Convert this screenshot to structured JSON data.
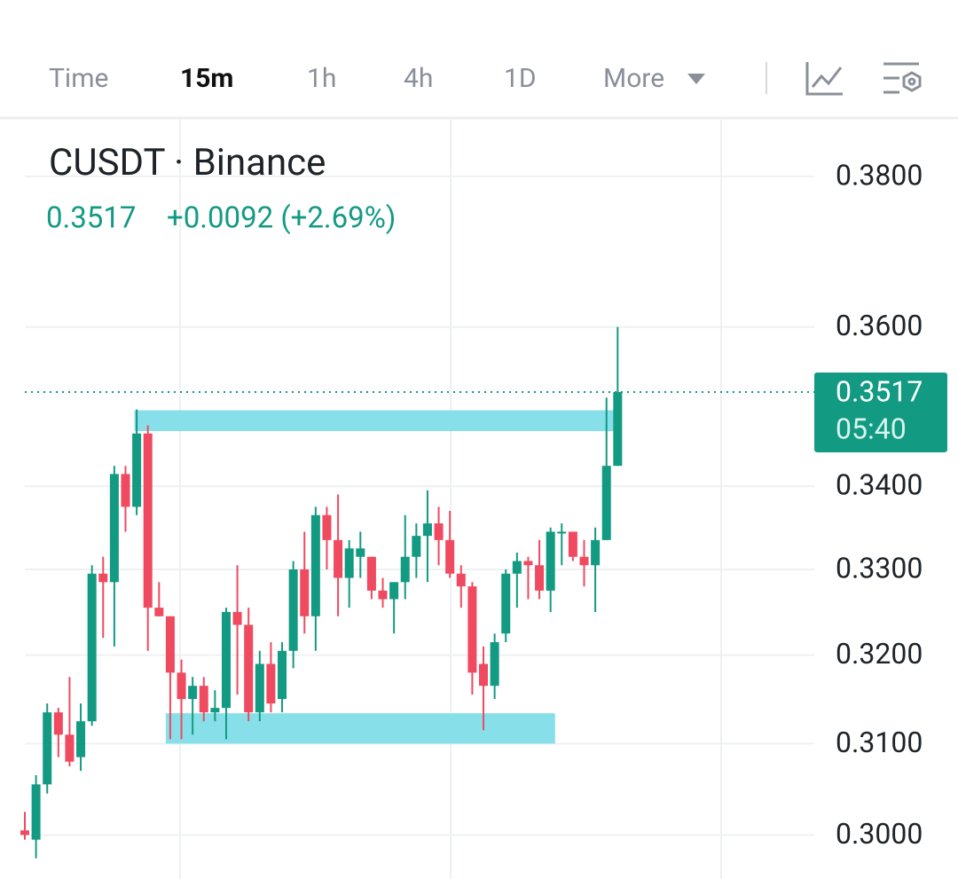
{
  "toolbar": {
    "tabs": [
      "Time",
      "15m",
      "1h",
      "4h",
      "1D",
      "More"
    ],
    "active": "15m"
  },
  "header": {
    "title": "CUSDT · Binance",
    "price": "0.3517",
    "change": "+0.0092 (+2.69%)"
  },
  "chart_data": {
    "type": "candlestick",
    "log": true,
    "grid": true,
    "up_color": "#139a82",
    "down_color": "#ef4a60",
    "zone_color": "#86dfe9",
    "ylim": [
      0.2953,
      0.3878
    ],
    "yticks": [
      {
        "value": 0.38,
        "label": "0.3800"
      },
      {
        "value": 0.36,
        "label": "0.3600"
      },
      {
        "value": 0.34,
        "label": "0.3400"
      },
      {
        "value": 0.33,
        "label": "0.3300"
      },
      {
        "value": 0.32,
        "label": "0.3200"
      },
      {
        "value": 0.31,
        "label": "0.3100"
      },
      {
        "value": 0.3,
        "label": "0.3000"
      }
    ],
    "open": [
      0.3005,
      0.2995,
      0.3055,
      0.3135,
      0.311,
      0.3085,
      0.3125,
      0.3295,
      0.3285,
      0.3415,
      0.3375,
      0.3465,
      0.3255,
      0.3245,
      0.318,
      0.315,
      0.3165,
      0.3135,
      0.314,
      0.325,
      0.3235,
      0.3135,
      0.319,
      0.315,
      0.3205,
      0.33,
      0.3245,
      0.3365,
      0.3335,
      0.329,
      0.3315,
      0.3315,
      0.3275,
      0.3265,
      0.3285,
      0.3315,
      0.334,
      0.3355,
      0.3335,
      0.3295,
      0.328,
      0.319,
      0.3165,
      0.3225,
      0.3295,
      0.331,
      0.3305,
      0.3275,
      0.3345,
      0.3345,
      0.3315,
      0.3305,
      0.3335,
      0.3425
    ],
    "high": [
      0.3025,
      0.3065,
      0.3145,
      0.314,
      0.3175,
      0.3145,
      0.3305,
      0.3315,
      0.3425,
      0.3425,
      0.3495,
      0.3475,
      0.3285,
      0.3245,
      0.3195,
      0.3175,
      0.3175,
      0.316,
      0.3255,
      0.3305,
      0.3255,
      0.3205,
      0.3215,
      0.3215,
      0.331,
      0.3345,
      0.3375,
      0.3375,
      0.339,
      0.3335,
      0.3345,
      0.3315,
      0.329,
      0.3285,
      0.3365,
      0.3355,
      0.3395,
      0.3375,
      0.337,
      0.3305,
      0.3285,
      0.321,
      0.3225,
      0.33,
      0.332,
      0.3315,
      0.3335,
      0.335,
      0.3355,
      0.3345,
      0.3335,
      0.335,
      0.351,
      0.36
    ],
    "low": [
      0.2995,
      0.2975,
      0.3045,
      0.3085,
      0.3075,
      0.307,
      0.312,
      0.322,
      0.321,
      0.3345,
      0.3365,
      0.3205,
      0.3245,
      0.3105,
      0.3105,
      0.311,
      0.3125,
      0.3125,
      0.3105,
      0.3155,
      0.3125,
      0.3125,
      0.3135,
      0.3135,
      0.3185,
      0.3225,
      0.3205,
      0.33,
      0.3245,
      0.3255,
      0.329,
      0.3265,
      0.3255,
      0.3225,
      0.3265,
      0.329,
      0.3285,
      0.3305,
      0.329,
      0.3255,
      0.3155,
      0.3115,
      0.315,
      0.3215,
      0.3255,
      0.3265,
      0.3265,
      0.325,
      0.3305,
      0.331,
      0.328,
      0.325,
      0.3335,
      0.3425
    ],
    "close": [
      0.3,
      0.3055,
      0.3135,
      0.311,
      0.308,
      0.3125,
      0.3295,
      0.3285,
      0.3415,
      0.3375,
      0.3465,
      0.3255,
      0.3245,
      0.318,
      0.315,
      0.3165,
      0.3135,
      0.314,
      0.325,
      0.3235,
      0.3135,
      0.319,
      0.3145,
      0.3205,
      0.33,
      0.3245,
      0.3365,
      0.3335,
      0.329,
      0.3325,
      0.3325,
      0.3275,
      0.3265,
      0.3285,
      0.3315,
      0.334,
      0.3355,
      0.3335,
      0.3295,
      0.328,
      0.318,
      0.3165,
      0.3215,
      0.3295,
      0.331,
      0.3305,
      0.3275,
      0.3345,
      0.3345,
      0.3315,
      0.3305,
      0.3335,
      0.3425,
      0.3517
    ],
    "zones": [
      {
        "y": [
          0.3468,
          0.3494
        ],
        "x": [
          9.8,
          52.8
        ]
      },
      {
        "y": [
          0.31,
          0.3134
        ],
        "x": [
          12.6,
          47.4
        ]
      }
    ],
    "last_price": 0.3517,
    "countdown": "05:40"
  }
}
